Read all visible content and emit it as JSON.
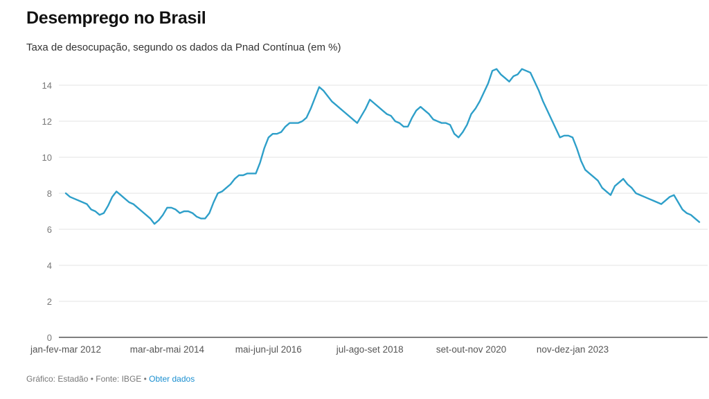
{
  "header": {
    "title": "Desemprego no Brasil",
    "subtitle": "Taxa de desocupação, segundo os dados da Pnad Contínua (em %)"
  },
  "footer": {
    "credit": "Gráfico: Estadão • Fonte: IBGE • ",
    "link_label": "Obter dados"
  },
  "colors": {
    "line": "#2e9fc9",
    "grid": "#e3e3e3",
    "axis": "#333333"
  },
  "chart_data": {
    "type": "line",
    "title": "Desemprego no Brasil",
    "subtitle": "Taxa de desocupação, segundo os dados da Pnad Contínua (em %)",
    "xlabel": "",
    "ylabel": "",
    "ylim": [
      0,
      14
    ],
    "y_ticks": [
      0,
      2,
      4,
      6,
      8,
      10,
      12,
      14
    ],
    "grid": true,
    "x_tick_labels": [
      {
        "index": 0,
        "label": "jan-fev-mar 2012"
      },
      {
        "index": 24,
        "label": "mar-abr-mai 2014"
      },
      {
        "index": 48,
        "label": "mai-jun-jul 2016"
      },
      {
        "index": 72,
        "label": "jul-ago-set 2018"
      },
      {
        "index": 96,
        "label": "set-out-nov 2020"
      },
      {
        "index": 120,
        "label": "nov-dez-jan 2023"
      }
    ],
    "series": [
      {
        "values": [
          8.0,
          7.8,
          7.7,
          7.6,
          7.5,
          7.4,
          7.1,
          7.0,
          6.8,
          6.9,
          7.3,
          7.8,
          8.1,
          7.9,
          7.7,
          7.5,
          7.4,
          7.2,
          7.0,
          6.8,
          6.6,
          6.3,
          6.5,
          6.8,
          7.2,
          7.2,
          7.1,
          6.9,
          7.0,
          7.0,
          6.9,
          6.7,
          6.6,
          6.6,
          6.9,
          7.5,
          8.0,
          8.1,
          8.3,
          8.5,
          8.8,
          9.0,
          9.0,
          9.1,
          9.1,
          9.1,
          9.7,
          10.5,
          11.1,
          11.3,
          11.3,
          11.4,
          11.7,
          11.9,
          11.9,
          11.9,
          12.0,
          12.2,
          12.7,
          13.3,
          13.9,
          13.7,
          13.4,
          13.1,
          12.9,
          12.7,
          12.5,
          12.3,
          12.1,
          11.9,
          12.3,
          12.7,
          13.2,
          13.0,
          12.8,
          12.6,
          12.4,
          12.3,
          12.0,
          11.9,
          11.7,
          11.7,
          12.2,
          12.6,
          12.8,
          12.6,
          12.4,
          12.1,
          12.0,
          11.9,
          11.9,
          11.8,
          11.3,
          11.1,
          11.4,
          11.8,
          12.4,
          12.7,
          13.1,
          13.6,
          14.1,
          14.8,
          14.9,
          14.6,
          14.4,
          14.2,
          14.5,
          14.6,
          14.9,
          14.8,
          14.7,
          14.2,
          13.7,
          13.1,
          12.6,
          12.1,
          11.6,
          11.1,
          11.2,
          11.2,
          11.1,
          10.5,
          9.8,
          9.3,
          9.1,
          8.9,
          8.7,
          8.3,
          8.1,
          7.9,
          8.4,
          8.6,
          8.8,
          8.5,
          8.3,
          8.0,
          7.9,
          7.8,
          7.7,
          7.6,
          7.5,
          7.4,
          7.6,
          7.8,
          7.9,
          7.5,
          7.1,
          6.9,
          6.8,
          6.6,
          6.4
        ]
      }
    ]
  }
}
